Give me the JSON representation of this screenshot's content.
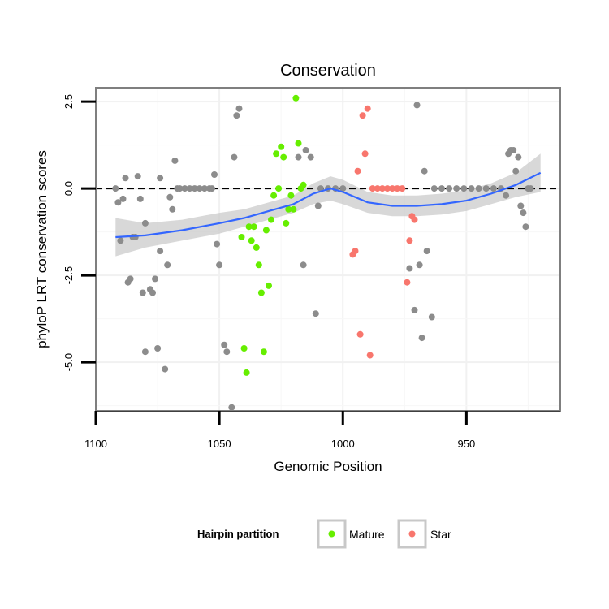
{
  "chart_data": {
    "type": "scatter",
    "title": "Conservation",
    "xlabel": "Genomic Position",
    "ylabel": "phyloP LRT conservation scores",
    "xlim": [
      1100,
      912
    ],
    "ylim": [
      -6.4,
      2.9
    ],
    "x_reversed": true,
    "xticks": [
      1100,
      1050,
      1000,
      950
    ],
    "xtick_labels": [
      "1100",
      "1050",
      "1000",
      "950"
    ],
    "yticks": [
      2.5,
      0.0,
      -2.5,
      -5.0
    ],
    "ytick_labels": [
      "2.5",
      "0.0",
      "-2.5",
      "-5.0"
    ],
    "grid": true,
    "reference_line": {
      "y": 0,
      "style": "dashed",
      "color": "#000000"
    },
    "legend": {
      "title": "Hairpin partition",
      "position": "bottom",
      "entries": [
        {
          "name": "Mature",
          "color": "#66ee00"
        },
        {
          "name": "Star",
          "color": "#f8766d"
        }
      ]
    },
    "colors": {
      "other": "#8c8c8c",
      "mature": "#66ee00",
      "star": "#f8766d",
      "smooth": "#3366ff",
      "band": "#c8c8c8"
    },
    "series": [
      {
        "name": "",
        "color": "#8c8c8c",
        "points": [
          [
            1092,
            0.0
          ],
          [
            1091,
            -0.4
          ],
          [
            1090,
            -1.5
          ],
          [
            1089,
            -0.3
          ],
          [
            1088,
            0.3
          ],
          [
            1087,
            -2.7
          ],
          [
            1086,
            -2.6
          ],
          [
            1085,
            -1.4
          ],
          [
            1084,
            -1.4
          ],
          [
            1083,
            0.35
          ],
          [
            1082,
            -0.3
          ],
          [
            1081,
            -3.0
          ],
          [
            1080,
            -4.7
          ],
          [
            1080,
            -1.0
          ],
          [
            1078,
            -2.9
          ],
          [
            1077,
            -3.0
          ],
          [
            1076,
            -2.6
          ],
          [
            1075,
            -4.6
          ],
          [
            1074,
            -1.8
          ],
          [
            1074,
            0.3
          ],
          [
            1072,
            -5.2
          ],
          [
            1071,
            -2.2
          ],
          [
            1070,
            -0.25
          ],
          [
            1069,
            -0.6
          ],
          [
            1068,
            0.8
          ],
          [
            1067,
            0.0
          ],
          [
            1066,
            0.0
          ],
          [
            1064,
            0.0
          ],
          [
            1062,
            0.0
          ],
          [
            1060,
            0.0
          ],
          [
            1058,
            0.0
          ],
          [
            1056,
            0.0
          ],
          [
            1054,
            0.0
          ],
          [
            1053,
            0.0
          ],
          [
            1052,
            0.4
          ],
          [
            1051,
            -1.6
          ],
          [
            1050,
            -2.2
          ],
          [
            1048,
            -4.5
          ],
          [
            1047,
            -4.7
          ],
          [
            1045,
            -6.3
          ],
          [
            1044,
            0.9
          ],
          [
            1043,
            2.1
          ],
          [
            1042,
            2.3
          ],
          [
            1018,
            0.9
          ],
          [
            1016,
            -2.2
          ],
          [
            1015,
            1.1
          ],
          [
            1013,
            0.9
          ],
          [
            1011,
            -3.6
          ],
          [
            1010,
            -0.5
          ],
          [
            1009,
            0.0
          ],
          [
            1006,
            0.0
          ],
          [
            1003,
            0.0
          ],
          [
            1000,
            0.0
          ],
          [
            970,
            2.4
          ],
          [
            969,
            -2.2
          ],
          [
            968,
            -4.3
          ],
          [
            967,
            0.5
          ],
          [
            966,
            -1.8
          ],
          [
            964,
            -3.7
          ],
          [
            963,
            0.0
          ],
          [
            960,
            0.0
          ],
          [
            957,
            0.0
          ],
          [
            954,
            0.0
          ],
          [
            951,
            0.0
          ],
          [
            948,
            0.0
          ],
          [
            945,
            0.0
          ],
          [
            942,
            0.0
          ],
          [
            939,
            0.0
          ],
          [
            936,
            0.0
          ],
          [
            934,
            -0.2
          ],
          [
            933,
            1.0
          ],
          [
            932,
            1.1
          ],
          [
            931,
            1.1
          ],
          [
            930,
            0.5
          ],
          [
            929,
            0.9
          ],
          [
            928,
            -0.5
          ],
          [
            927,
            -0.7
          ],
          [
            926,
            -1.1
          ],
          [
            925,
            0.0
          ],
          [
            924,
            0.0
          ],
          [
            971,
            -3.5
          ],
          [
            973,
            -2.3
          ]
        ]
      },
      {
        "name": "Mature",
        "color": "#66ee00",
        "points": [
          [
            1041,
            -1.4
          ],
          [
            1040,
            -4.6
          ],
          [
            1039,
            -5.3
          ],
          [
            1038,
            -1.1
          ],
          [
            1037,
            -1.5
          ],
          [
            1036,
            -1.1
          ],
          [
            1035,
            -1.7
          ],
          [
            1034,
            -2.2
          ],
          [
            1033,
            -3.0
          ],
          [
            1032,
            -4.7
          ],
          [
            1031,
            -1.2
          ],
          [
            1030,
            -2.8
          ],
          [
            1029,
            -0.9
          ],
          [
            1028,
            -0.2
          ],
          [
            1027,
            1.0
          ],
          [
            1026,
            0.0
          ],
          [
            1025,
            1.2
          ],
          [
            1024,
            0.9
          ],
          [
            1023,
            -1.0
          ],
          [
            1022,
            -0.6
          ],
          [
            1021,
            -0.2
          ],
          [
            1020,
            -0.6
          ],
          [
            1019,
            2.6
          ],
          [
            1018,
            1.3
          ],
          [
            1017,
            0.0
          ],
          [
            1016,
            0.1
          ]
        ]
      },
      {
        "name": "Star",
        "color": "#f8766d",
        "points": [
          [
            996,
            -1.9
          ],
          [
            995,
            -1.8
          ],
          [
            994,
            0.5
          ],
          [
            993,
            -4.2
          ],
          [
            992,
            2.1
          ],
          [
            991,
            1.0
          ],
          [
            990,
            2.3
          ],
          [
            989,
            -4.8
          ],
          [
            988,
            0.0
          ],
          [
            986,
            0.0
          ],
          [
            984,
            0.0
          ],
          [
            982,
            0.0
          ],
          [
            980,
            0.0
          ],
          [
            978,
            0.0
          ],
          [
            976,
            0.0
          ],
          [
            974,
            -2.7
          ],
          [
            973,
            -1.5
          ],
          [
            972,
            -0.8
          ],
          [
            971,
            -0.9
          ]
        ]
      }
    ],
    "smooth": {
      "x": [
        1092,
        1080,
        1065,
        1050,
        1040,
        1030,
        1020,
        1012,
        1005,
        1000,
        990,
        980,
        970,
        960,
        950,
        940,
        930,
        920
      ],
      "y": [
        -1.4,
        -1.35,
        -1.2,
        -1.0,
        -0.85,
        -0.65,
        -0.45,
        -0.15,
        0.0,
        -0.1,
        -0.4,
        -0.5,
        -0.5,
        -0.45,
        -0.35,
        -0.15,
        0.1,
        0.45
      ],
      "lo": [
        -1.95,
        -1.7,
        -1.5,
        -1.3,
        -1.1,
        -0.9,
        -0.7,
        -0.45,
        -0.35,
        -0.45,
        -0.7,
        -0.8,
        -0.8,
        -0.75,
        -0.65,
        -0.45,
        -0.25,
        -0.1
      ],
      "hi": [
        -0.85,
        -1.0,
        -0.9,
        -0.7,
        -0.6,
        -0.4,
        -0.2,
        0.15,
        0.35,
        0.25,
        -0.1,
        -0.2,
        -0.2,
        -0.15,
        -0.05,
        0.15,
        0.45,
        1.0
      ]
    }
  }
}
